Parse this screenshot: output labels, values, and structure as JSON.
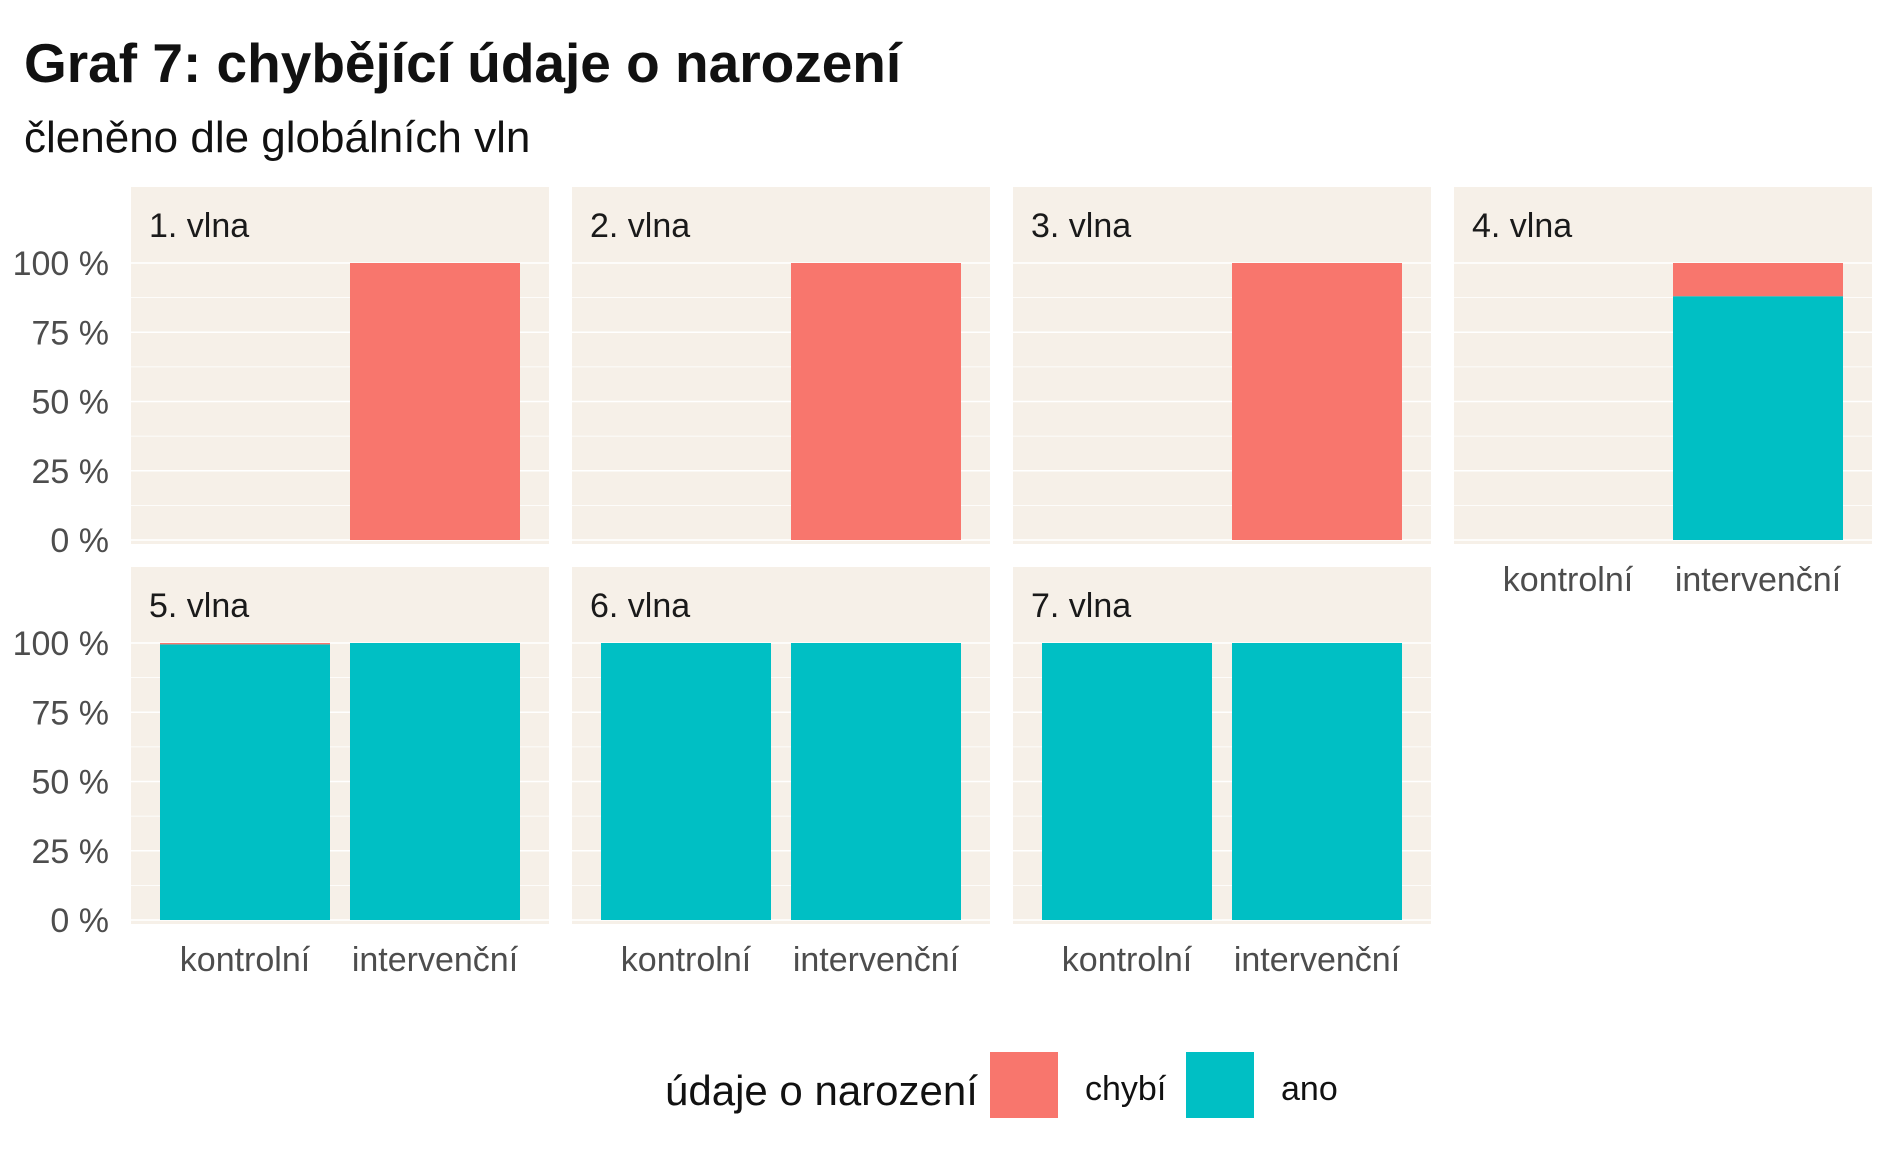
{
  "chart_data": {
    "type": "bar",
    "stacked": true,
    "title": "Graf 7: chybějící údaje o narození",
    "subtitle": "členěno dle globálních vln",
    "categories": [
      "kontrolní",
      "intervenční"
    ],
    "y_ticks": [
      "0 %",
      "25 %",
      "50 %",
      "75 %",
      "100 %"
    ],
    "ylim": [
      0,
      100
    ],
    "grid": true,
    "legend": {
      "title": "údaje o narození",
      "placement": "bottom",
      "entries": [
        {
          "name": "chybí",
          "color": "#F8766D"
        },
        {
          "name": "ano",
          "color": "#00BFC4"
        }
      ]
    },
    "panel_background": "#F6F0E8",
    "gridline_color": "#FFFFFF",
    "facets": [
      {
        "label": "1. vlna",
        "series": [
          {
            "name": "ano",
            "values": [
              0,
              0
            ]
          },
          {
            "name": "chybí",
            "values": [
              0,
              100
            ]
          }
        ]
      },
      {
        "label": "2. vlna",
        "series": [
          {
            "name": "ano",
            "values": [
              0,
              0
            ]
          },
          {
            "name": "chybí",
            "values": [
              0,
              100
            ]
          }
        ]
      },
      {
        "label": "3. vlna",
        "series": [
          {
            "name": "ano",
            "values": [
              0,
              0
            ]
          },
          {
            "name": "chybí",
            "values": [
              0,
              100
            ]
          }
        ]
      },
      {
        "label": "4. vlna",
        "series": [
          {
            "name": "ano",
            "values": [
              0,
              88
            ]
          },
          {
            "name": "chybí",
            "values": [
              0,
              12
            ]
          }
        ]
      },
      {
        "label": "5. vlna",
        "series": [
          {
            "name": "ano",
            "values": [
              99.5,
              100
            ]
          },
          {
            "name": "chybí",
            "values": [
              0.5,
              0
            ]
          }
        ]
      },
      {
        "label": "6. vlna",
        "series": [
          {
            "name": "ano",
            "values": [
              100,
              100
            ]
          },
          {
            "name": "chybí",
            "values": [
              0,
              0
            ]
          }
        ]
      },
      {
        "label": "7. vlna",
        "series": [
          {
            "name": "ano",
            "values": [
              100,
              100
            ]
          },
          {
            "name": "chybí",
            "values": [
              0,
              0
            ]
          }
        ]
      }
    ]
  }
}
